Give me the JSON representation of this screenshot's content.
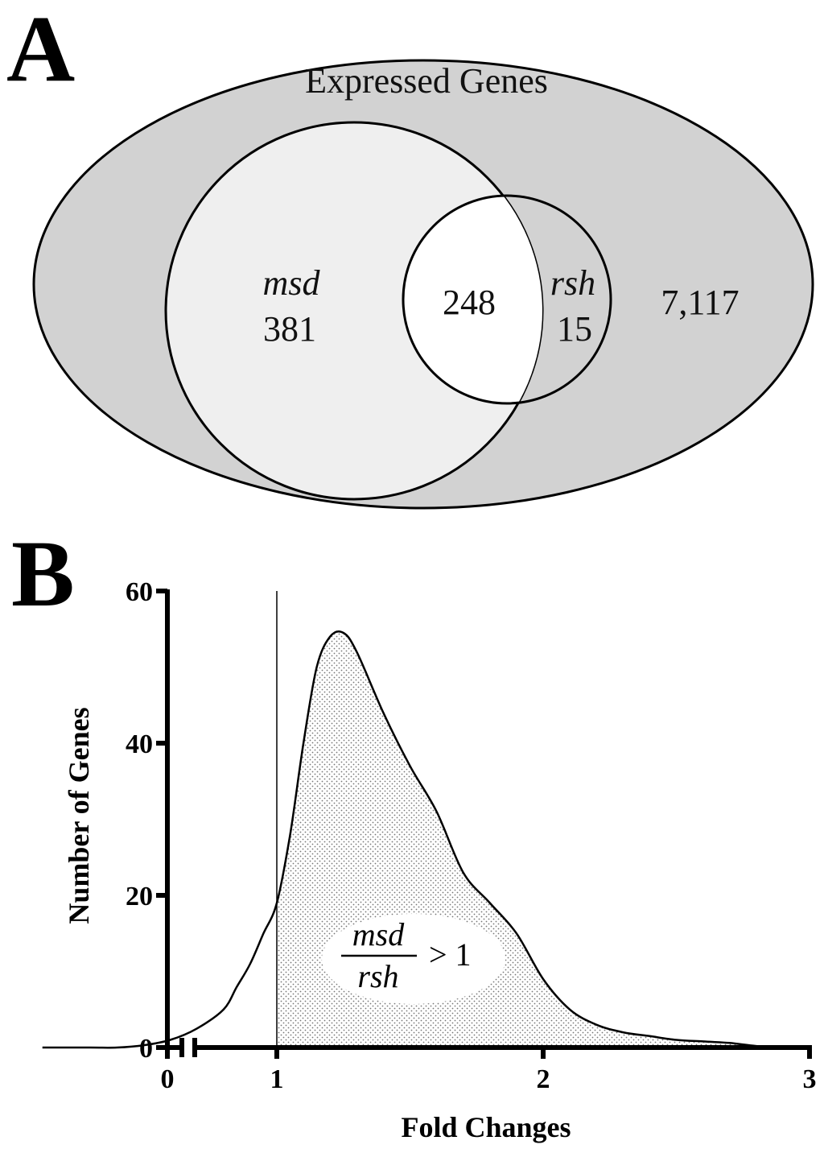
{
  "panel_a": {
    "letter": "A",
    "outer_label": "Expressed Genes",
    "set_left_name": "msd",
    "set_left_only": "381",
    "overlap": "248",
    "set_right_name": "rsh",
    "set_right_only": "15",
    "outside_count": "7,117",
    "colors": {
      "outer_fill": "#d2d2d2",
      "left_fill": "#efefef",
      "overlap_fill": "#ffffff"
    }
  },
  "panel_b": {
    "letter": "B",
    "annotation": {
      "numerator": "msd",
      "denominator": "rsh",
      "relation": "> 1"
    }
  },
  "chart_data": {
    "type": "area",
    "xlabel": "Fold Changes",
    "ylabel": "Number of Genes",
    "xlim": [
      0,
      3
    ],
    "ylim": [
      0,
      60
    ],
    "x_ticks": [
      "0",
      "1",
      "2",
      "3"
    ],
    "y_ticks": [
      "0",
      "20",
      "40",
      "60"
    ],
    "x_axis_break": true,
    "threshold_x": 1.0,
    "shaded_region": "x > 1 (stippled)",
    "x": [
      0.12,
      0.2,
      0.3,
      0.4,
      0.5,
      0.6,
      0.7,
      0.8,
      0.85,
      0.9,
      0.95,
      1.0,
      1.05,
      1.1,
      1.15,
      1.2,
      1.25,
      1.3,
      1.4,
      1.5,
      1.6,
      1.7,
      1.8,
      1.9,
      2.0,
      2.1,
      2.2,
      2.3,
      2.4,
      2.5,
      2.6,
      2.7,
      2.8,
      2.9
    ],
    "values": [
      0,
      0,
      0,
      0,
      0.3,
      1,
      2.5,
      5,
      8,
      11,
      15,
      19,
      28,
      40,
      50,
      54,
      54.5,
      52,
      44,
      37,
      31,
      23,
      19,
      15,
      9,
      5,
      3,
      2,
      1.5,
      1,
      0.8,
      0.6,
      0.2,
      0
    ]
  }
}
